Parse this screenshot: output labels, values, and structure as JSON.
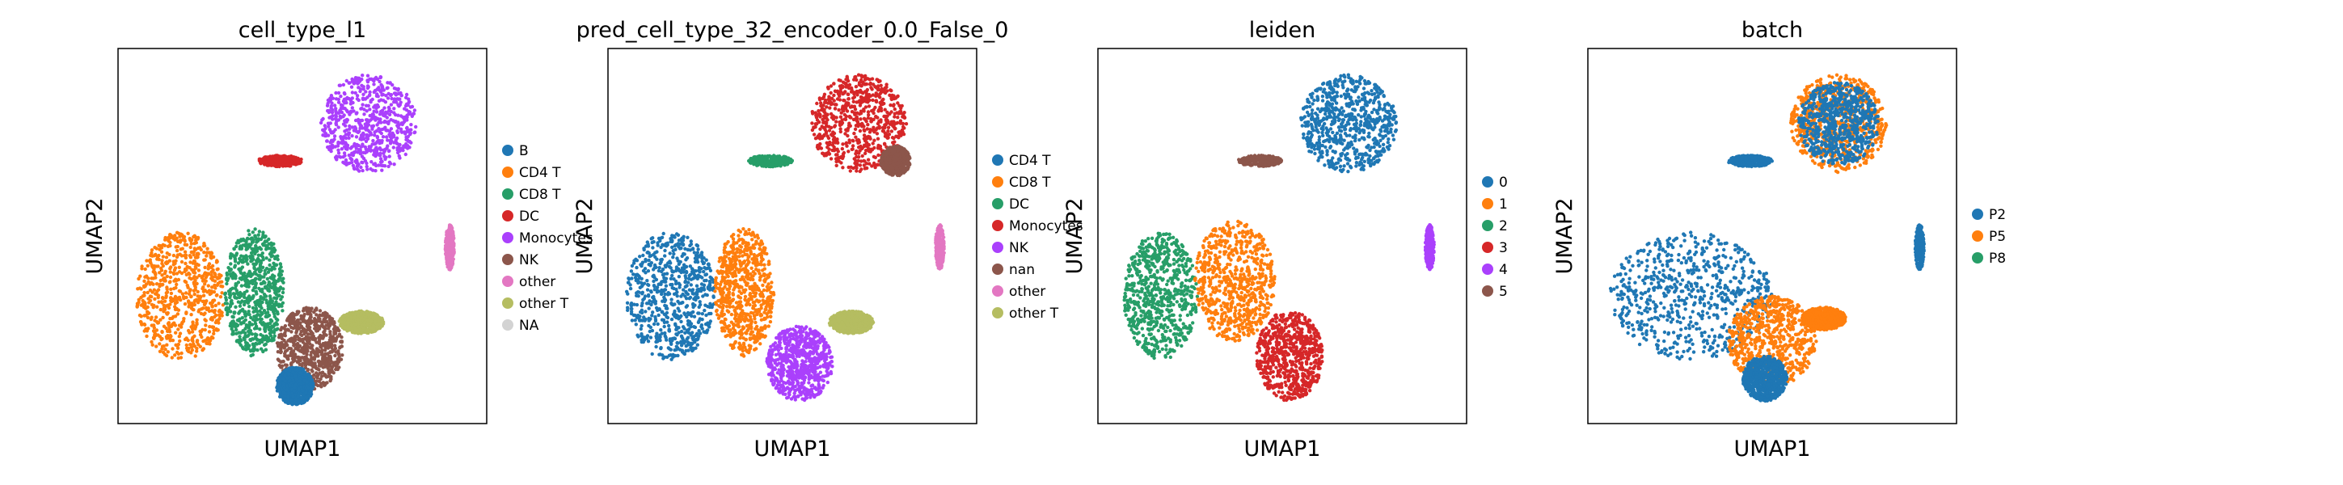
{
  "chart_data": [
    {
      "type": "scatter",
      "title": "cell_type_l1",
      "xlabel": "UMAP1",
      "ylabel": "UMAP2",
      "grid": false,
      "ticks": false,
      "legend_position": "right",
      "series": [
        {
          "name": "B",
          "color": "#1f77b4"
        },
        {
          "name": "CD4 T",
          "color": "#ff7f0e"
        },
        {
          "name": "CD8 T",
          "color": "#279e68"
        },
        {
          "name": "DC",
          "color": "#d62728"
        },
        {
          "name": "Monocytes",
          "color": "#aa40fc"
        },
        {
          "name": "NK",
          "color": "#8c564b"
        },
        {
          "name": "other",
          "color": "#e377c2"
        },
        {
          "name": "other T",
          "color": "#b5bd61"
        },
        {
          "name": "NA",
          "color": "#d3d3d3"
        }
      ],
      "clusters": [
        {
          "series": "Monocytes",
          "cx": 0.68,
          "cy": 0.8,
          "rx": 0.13,
          "ry": 0.13
        },
        {
          "series": "DC",
          "cx": 0.44,
          "cy": 0.7,
          "rx": 0.06,
          "ry": 0.015
        },
        {
          "series": "other",
          "cx": 0.9,
          "cy": 0.47,
          "rx": 0.012,
          "ry": 0.06
        },
        {
          "series": "CD4 T",
          "cx": 0.17,
          "cy": 0.34,
          "rx": 0.12,
          "ry": 0.17
        },
        {
          "series": "CD8 T",
          "cx": 0.37,
          "cy": 0.35,
          "rx": 0.08,
          "ry": 0.17
        },
        {
          "series": "NK",
          "cx": 0.52,
          "cy": 0.2,
          "rx": 0.09,
          "ry": 0.11
        },
        {
          "series": "B",
          "cx": 0.48,
          "cy": 0.1,
          "rx": 0.05,
          "ry": 0.05
        },
        {
          "series": "other T",
          "cx": 0.66,
          "cy": 0.27,
          "rx": 0.06,
          "ry": 0.03
        }
      ]
    },
    {
      "type": "scatter",
      "title": "pred_cell_type_32_encoder_0.0_False_0",
      "xlabel": "UMAP1",
      "ylabel": "UMAP2",
      "grid": false,
      "ticks": false,
      "legend_position": "right",
      "series": [
        {
          "name": "CD4 T",
          "color": "#1f77b4"
        },
        {
          "name": "CD8 T",
          "color": "#ff7f0e"
        },
        {
          "name": "DC",
          "color": "#279e68"
        },
        {
          "name": "Monocytes",
          "color": "#d62728"
        },
        {
          "name": "NK",
          "color": "#aa40fc"
        },
        {
          "name": "nan",
          "color": "#8c564b"
        },
        {
          "name": "other",
          "color": "#e377c2"
        },
        {
          "name": "other T",
          "color": "#b5bd61"
        }
      ],
      "clusters": [
        {
          "series": "Monocytes",
          "cx": 0.68,
          "cy": 0.8,
          "rx": 0.13,
          "ry": 0.13
        },
        {
          "series": "nan",
          "cx": 0.78,
          "cy": 0.7,
          "rx": 0.04,
          "ry": 0.04
        },
        {
          "series": "DC",
          "cx": 0.44,
          "cy": 0.7,
          "rx": 0.06,
          "ry": 0.015
        },
        {
          "series": "other",
          "cx": 0.9,
          "cy": 0.47,
          "rx": 0.012,
          "ry": 0.06
        },
        {
          "series": "CD4 T",
          "cx": 0.17,
          "cy": 0.34,
          "rx": 0.12,
          "ry": 0.17
        },
        {
          "series": "CD8 T",
          "cx": 0.37,
          "cy": 0.35,
          "rx": 0.08,
          "ry": 0.17
        },
        {
          "series": "NK",
          "cx": 0.52,
          "cy": 0.16,
          "rx": 0.09,
          "ry": 0.1
        },
        {
          "series": "other T",
          "cx": 0.66,
          "cy": 0.27,
          "rx": 0.06,
          "ry": 0.03
        }
      ]
    },
    {
      "type": "scatter",
      "title": "leiden",
      "xlabel": "UMAP1",
      "ylabel": "UMAP2",
      "grid": false,
      "ticks": false,
      "legend_position": "right",
      "series": [
        {
          "name": "0",
          "color": "#1f77b4"
        },
        {
          "name": "1",
          "color": "#ff7f0e"
        },
        {
          "name": "2",
          "color": "#279e68"
        },
        {
          "name": "3",
          "color": "#d62728"
        },
        {
          "name": "4",
          "color": "#aa40fc"
        },
        {
          "name": "5",
          "color": "#8c564b"
        }
      ],
      "clusters": [
        {
          "series": "0",
          "cx": 0.68,
          "cy": 0.8,
          "rx": 0.13,
          "ry": 0.13
        },
        {
          "series": "5",
          "cx": 0.44,
          "cy": 0.7,
          "rx": 0.06,
          "ry": 0.015
        },
        {
          "series": "4",
          "cx": 0.9,
          "cy": 0.47,
          "rx": 0.012,
          "ry": 0.06
        },
        {
          "series": "2",
          "cx": 0.17,
          "cy": 0.34,
          "rx": 0.1,
          "ry": 0.17
        },
        {
          "series": "1",
          "cx": 0.37,
          "cy": 0.38,
          "rx": 0.11,
          "ry": 0.16
        },
        {
          "series": "3",
          "cx": 0.52,
          "cy": 0.18,
          "rx": 0.09,
          "ry": 0.12
        }
      ]
    },
    {
      "type": "scatter",
      "title": "batch",
      "xlabel": "UMAP1",
      "ylabel": "UMAP2",
      "grid": false,
      "ticks": false,
      "legend_position": "right",
      "series": [
        {
          "name": "P2",
          "color": "#1f77b4"
        },
        {
          "name": "P5",
          "color": "#ff7f0e"
        },
        {
          "name": "P8",
          "color": "#279e68"
        }
      ],
      "clusters": [
        {
          "series": "P5",
          "cx": 0.68,
          "cy": 0.8,
          "rx": 0.13,
          "ry": 0.13
        },
        {
          "series": "P2",
          "cx": 0.68,
          "cy": 0.8,
          "rx": 0.11,
          "ry": 0.11
        },
        {
          "series": "P2",
          "cx": 0.44,
          "cy": 0.7,
          "rx": 0.06,
          "ry": 0.015
        },
        {
          "series": "P2",
          "cx": 0.9,
          "cy": 0.47,
          "rx": 0.012,
          "ry": 0.06
        },
        {
          "series": "P2",
          "cx": 0.28,
          "cy": 0.34,
          "rx": 0.22,
          "ry": 0.17
        },
        {
          "series": "P5",
          "cx": 0.5,
          "cy": 0.22,
          "rx": 0.12,
          "ry": 0.12
        },
        {
          "series": "P2",
          "cx": 0.48,
          "cy": 0.12,
          "rx": 0.06,
          "ry": 0.06
        },
        {
          "series": "P5",
          "cx": 0.64,
          "cy": 0.28,
          "rx": 0.06,
          "ry": 0.03
        }
      ]
    }
  ]
}
